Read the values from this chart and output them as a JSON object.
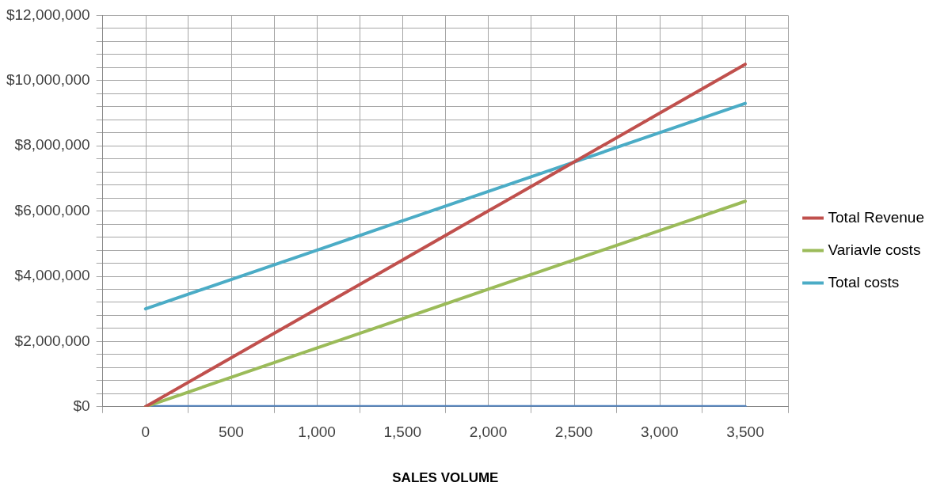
{
  "chart_data": {
    "type": "line",
    "xlabel": "SALES VOLUME",
    "categories": [
      "0",
      "500",
      "1,000",
      "1,500",
      "2,000",
      "2,500",
      "3,000",
      "3,500"
    ],
    "series": [
      {
        "name": "Total Revenue",
        "color": "#c0504d",
        "values": [
          0,
          1500000,
          3000000,
          4500000,
          6000000,
          7500000,
          9000000,
          10500000
        ]
      },
      {
        "name": "Variavle costs",
        "color": "#9bbb59",
        "values": [
          0,
          900000,
          1800000,
          2700000,
          3600000,
          4500000,
          5400000,
          6300000
        ]
      },
      {
        "name": "Total costs",
        "color": "#4bacc6",
        "values": [
          3000000,
          3900000,
          4800000,
          5700000,
          6600000,
          7500000,
          8400000,
          9300000
        ]
      },
      {
        "color": "#4f81bd",
        "values": [
          0,
          0,
          0,
          0,
          0,
          0,
          0,
          0
        ]
      }
    ],
    "ylim": [
      0,
      12000000
    ],
    "yticks": [
      {
        "value": 0,
        "label": "$0"
      },
      {
        "value": 400000,
        "label": null
      },
      {
        "value": 800000,
        "label": null
      },
      {
        "value": 1200000,
        "label": null
      },
      {
        "value": 1600000,
        "label": null
      },
      {
        "value": 2000000,
        "label": "$2,000,000"
      },
      {
        "value": 2400000,
        "label": null
      },
      {
        "value": 2800000,
        "label": null
      },
      {
        "value": 3200000,
        "label": null
      },
      {
        "value": 3600000,
        "label": null
      },
      {
        "value": 4000000,
        "label": "$4,000,000"
      },
      {
        "value": 4400000,
        "label": null
      },
      {
        "value": 4800000,
        "label": null
      },
      {
        "value": 5200000,
        "label": null
      },
      {
        "value": 5600000,
        "label": null
      },
      {
        "value": 6000000,
        "label": "$6,000,000"
      },
      {
        "value": 6400000,
        "label": null
      },
      {
        "value": 6800000,
        "label": null
      },
      {
        "value": 7200000,
        "label": null
      },
      {
        "value": 7600000,
        "label": null
      },
      {
        "value": 8000000,
        "label": "$8,000,000"
      },
      {
        "value": 8400000,
        "label": null
      },
      {
        "value": 8800000,
        "label": null
      },
      {
        "value": 9200000,
        "label": null
      },
      {
        "value": 9600000,
        "label": null
      },
      {
        "value": 10000000,
        "label": "$10,000,000"
      },
      {
        "value": 10400000,
        "label": null
      },
      {
        "value": 10800000,
        "label": null
      },
      {
        "value": 11200000,
        "label": null
      },
      {
        "value": 11600000,
        "label": null
      },
      {
        "value": 12000000,
        "label": "$12,000,000"
      }
    ],
    "grid": true,
    "legend": "right",
    "marker": "none",
    "line_style": "solid"
  }
}
